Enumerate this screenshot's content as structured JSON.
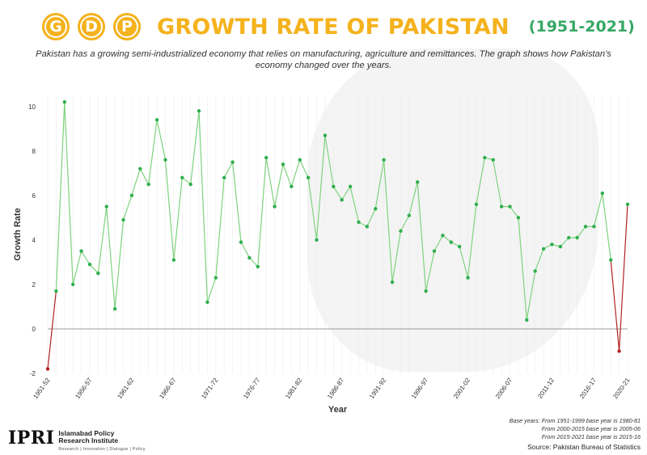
{
  "header": {
    "icons": [
      "G",
      "D",
      "P"
    ],
    "title": "GROWTH RATE OF PAKISTAN",
    "years": "(1951-2021)",
    "subtitle": "Pakistan has a growing semi-industrialized economy that relies on manufacturing, agriculture and remittances. The graph shows how Pakistan's economy changed over the years."
  },
  "footer": {
    "logo": "IPRI",
    "org_name": "Islamabad Policy Research Institute",
    "tagline": "Research | Innovation | Dialogue | Policy",
    "notes": [
      "Base years:  From 1951-1999 base year is 1980-81",
      "From 2000-2015 base year is 2005-06",
      "From 2015-2021 base year is 2015-16"
    ],
    "source": "Source: Pakistan Bureau of Statistics"
  },
  "colors": {
    "title": "#f4b21c",
    "accent": "#36a865",
    "line": "#7ed37e",
    "point": "#2fae4e",
    "negative": "#b22222"
  },
  "chart_data": {
    "type": "line",
    "xlabel": "Year",
    "ylabel": "Growth Rate",
    "ylim": [
      -2,
      10.5
    ],
    "yticks": [
      -2,
      0,
      2,
      4,
      6,
      8,
      10
    ],
    "tick_labels": [
      "1951-52",
      "1956-57",
      "1961-62",
      "1966-67",
      "1971-72",
      "1976-77",
      "1981-82",
      "1986-87",
      "1991-92",
      "1996-97",
      "2001-02",
      "2006-07",
      "2011-12",
      "2016-17",
      "2020-21"
    ],
    "x": [
      "1951-52",
      "1952-53",
      "1953-54",
      "1954-55",
      "1955-56",
      "1956-57",
      "1957-58",
      "1958-59",
      "1959-60",
      "1960-61",
      "1961-62",
      "1962-63",
      "1963-64",
      "1964-65",
      "1965-66",
      "1966-67",
      "1967-68",
      "1968-69",
      "1969-70",
      "1970-71",
      "1971-72",
      "1972-73",
      "1973-74",
      "1974-75",
      "1975-76",
      "1976-77",
      "1977-78",
      "1978-79",
      "1979-80",
      "1980-81",
      "1981-82",
      "1982-83",
      "1983-84",
      "1984-85",
      "1985-86",
      "1986-87",
      "1987-88",
      "1988-89",
      "1989-90",
      "1990-91",
      "1991-92",
      "1992-93",
      "1993-94",
      "1994-95",
      "1995-96",
      "1996-97",
      "1997-98",
      "1998-99",
      "1999-00",
      "2000-01",
      "2001-02",
      "2002-03",
      "2003-04",
      "2004-05",
      "2005-06",
      "2006-07",
      "2007-08",
      "2008-09",
      "2009-10",
      "2010-11",
      "2011-12",
      "2012-13",
      "2013-14",
      "2014-15",
      "2015-16",
      "2016-17",
      "2017-18",
      "2018-19",
      "2019-20",
      "2020-21"
    ],
    "values": [
      -1.8,
      1.7,
      10.2,
      2.0,
      3.5,
      2.9,
      2.5,
      5.5,
      0.9,
      4.9,
      6.0,
      7.2,
      6.5,
      9.4,
      7.6,
      3.1,
      6.8,
      6.5,
      9.8,
      1.2,
      2.3,
      6.8,
      7.5,
      3.9,
      3.2,
      2.8,
      7.7,
      5.5,
      7.4,
      6.4,
      7.6,
      6.8,
      4.0,
      8.7,
      6.4,
      5.8,
      6.4,
      4.8,
      4.6,
      5.4,
      7.6,
      2.1,
      4.4,
      5.1,
      6.6,
      1.7,
      3.5,
      4.2,
      3.9,
      3.7,
      2.3,
      5.6,
      7.7,
      7.6,
      5.5,
      5.5,
      5.0,
      0.4,
      2.6,
      3.6,
      3.8,
      3.7,
      4.1,
      4.1,
      4.6,
      4.6,
      6.1,
      3.1,
      -1.0,
      5.6
    ]
  }
}
